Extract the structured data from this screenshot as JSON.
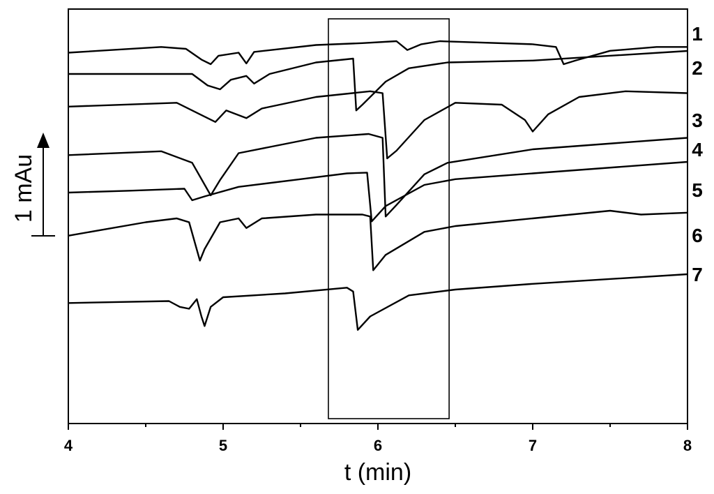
{
  "chart_data": {
    "type": "line",
    "title": "",
    "xlabel": "t (min)",
    "ylabel": "",
    "xlim": [
      4,
      8
    ],
    "xticks": [
      "4",
      "5",
      "6",
      "7",
      "8"
    ],
    "grid": false,
    "scale_bar": {
      "label": "1 mAu",
      "value": 1
    },
    "highlight_box": {
      "x_start": 5.68,
      "x_end": 6.46
    },
    "series": [
      {
        "name": "1",
        "points": [
          [
            4.0,
            0.9
          ],
          [
            4.6,
            1.05
          ],
          [
            4.76,
            1.0
          ],
          [
            4.86,
            0.72
          ],
          [
            4.92,
            0.6
          ],
          [
            4.97,
            0.82
          ],
          [
            5.1,
            0.9
          ],
          [
            5.15,
            0.62
          ],
          [
            5.2,
            0.92
          ],
          [
            5.6,
            1.1
          ],
          [
            5.9,
            1.15
          ],
          [
            6.12,
            1.2
          ],
          [
            6.19,
            0.97
          ],
          [
            6.28,
            1.12
          ],
          [
            6.4,
            1.2
          ],
          [
            7.0,
            1.12
          ],
          [
            7.15,
            1.05
          ],
          [
            7.2,
            0.6
          ],
          [
            7.28,
            0.7
          ],
          [
            7.5,
            0.95
          ],
          [
            7.8,
            1.05
          ],
          [
            8.0,
            1.05
          ]
        ]
      },
      {
        "name": "2",
        "points": [
          [
            4.0,
            1.8
          ],
          [
            4.8,
            1.8
          ],
          [
            4.9,
            1.5
          ],
          [
            4.98,
            1.4
          ],
          [
            5.05,
            1.65
          ],
          [
            5.15,
            1.75
          ],
          [
            5.2,
            1.55
          ],
          [
            5.3,
            1.8
          ],
          [
            5.6,
            2.1
          ],
          [
            5.84,
            2.2
          ],
          [
            5.86,
            0.85
          ],
          [
            5.9,
            1.0
          ],
          [
            6.05,
            1.6
          ],
          [
            6.2,
            1.95
          ],
          [
            6.45,
            2.1
          ],
          [
            7.0,
            2.15
          ],
          [
            8.0,
            2.4
          ]
        ]
      },
      {
        "name": "3",
        "points": [
          [
            4.0,
            1.95
          ],
          [
            4.7,
            2.05
          ],
          [
            4.85,
            1.75
          ],
          [
            4.95,
            1.55
          ],
          [
            5.02,
            1.85
          ],
          [
            5.15,
            1.65
          ],
          [
            5.25,
            1.9
          ],
          [
            5.6,
            2.2
          ],
          [
            5.95,
            2.35
          ],
          [
            6.03,
            2.3
          ],
          [
            6.06,
            0.6
          ],
          [
            6.12,
            0.8
          ],
          [
            6.3,
            1.6
          ],
          [
            6.5,
            2.05
          ],
          [
            6.8,
            2.0
          ],
          [
            6.95,
            1.6
          ],
          [
            7.0,
            1.3
          ],
          [
            7.1,
            1.75
          ],
          [
            7.3,
            2.2
          ],
          [
            7.6,
            2.35
          ],
          [
            8.0,
            2.3
          ]
        ]
      },
      {
        "name": "4",
        "points": [
          [
            4.0,
            2.05
          ],
          [
            4.6,
            2.15
          ],
          [
            4.8,
            1.85
          ],
          [
            4.92,
            1.0
          ],
          [
            4.98,
            1.4
          ],
          [
            5.1,
            2.1
          ],
          [
            5.6,
            2.5
          ],
          [
            5.94,
            2.6
          ],
          [
            6.03,
            2.5
          ],
          [
            6.05,
            0.45
          ],
          [
            6.12,
            0.75
          ],
          [
            6.3,
            1.55
          ],
          [
            6.45,
            1.85
          ],
          [
            7.0,
            2.2
          ],
          [
            8.0,
            2.5
          ]
        ]
      },
      {
        "name": "5",
        "points": [
          [
            4.0,
            1.8
          ],
          [
            4.4,
            1.85
          ],
          [
            4.75,
            1.9
          ],
          [
            4.8,
            1.6
          ],
          [
            4.88,
            1.7
          ],
          [
            5.1,
            1.95
          ],
          [
            5.5,
            2.15
          ],
          [
            5.8,
            2.3
          ],
          [
            5.93,
            2.32
          ],
          [
            5.96,
            1.05
          ],
          [
            6.05,
            1.45
          ],
          [
            6.3,
            2.0
          ],
          [
            6.5,
            2.15
          ],
          [
            7.0,
            2.3
          ],
          [
            8.0,
            2.6
          ]
        ]
      },
      {
        "name": "6",
        "points": [
          [
            4.0,
            1.95
          ],
          [
            4.5,
            2.3
          ],
          [
            4.7,
            2.4
          ],
          [
            4.78,
            2.3
          ],
          [
            4.85,
            1.3
          ],
          [
            4.88,
            1.6
          ],
          [
            4.98,
            2.3
          ],
          [
            5.1,
            2.4
          ],
          [
            5.15,
            2.15
          ],
          [
            5.25,
            2.4
          ],
          [
            5.6,
            2.5
          ],
          [
            5.9,
            2.5
          ],
          [
            5.95,
            2.45
          ],
          [
            5.97,
            1.05
          ],
          [
            6.05,
            1.45
          ],
          [
            6.3,
            2.05
          ],
          [
            6.5,
            2.2
          ],
          [
            7.0,
            2.4
          ],
          [
            7.5,
            2.6
          ],
          [
            7.7,
            2.5
          ],
          [
            8.0,
            2.55
          ]
        ]
      },
      {
        "name": "7",
        "points": [
          [
            4.0,
            1.65
          ],
          [
            4.65,
            1.7
          ],
          [
            4.72,
            1.55
          ],
          [
            4.78,
            1.5
          ],
          [
            4.83,
            1.75
          ],
          [
            4.86,
            1.3
          ],
          [
            4.88,
            1.05
          ],
          [
            4.92,
            1.55
          ],
          [
            5.0,
            1.8
          ],
          [
            5.4,
            1.9
          ],
          [
            5.8,
            2.05
          ],
          [
            5.84,
            1.95
          ],
          [
            5.87,
            0.95
          ],
          [
            5.95,
            1.3
          ],
          [
            6.2,
            1.85
          ],
          [
            6.5,
            2.0
          ],
          [
            7.0,
            2.15
          ],
          [
            8.0,
            2.4
          ]
        ]
      }
    ]
  }
}
